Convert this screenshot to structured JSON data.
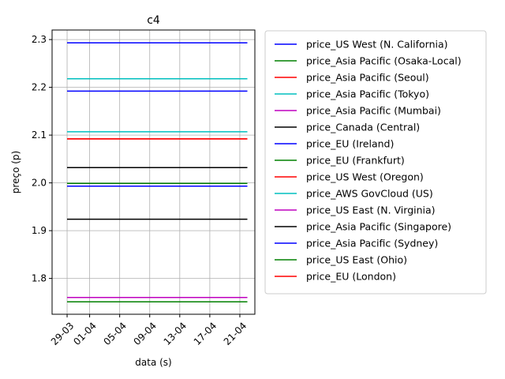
{
  "chart_data": {
    "type": "line",
    "title": "c4",
    "xlabel": "data (s)",
    "ylabel": "preço (p)",
    "xlim": [
      "2017-03-27",
      "2017-04-23"
    ],
    "ylim": [
      1.725,
      2.32
    ],
    "x_ticks": [
      "2017-03-29",
      "2017-04-01",
      "2017-04-05",
      "2017-04-09",
      "2017-04-13",
      "2017-04-17",
      "2017-04-21"
    ],
    "x_tick_labels": [
      "29-03",
      "01-04",
      "05-04",
      "09-04",
      "13-04",
      "17-04",
      "21-04"
    ],
    "y_ticks": [
      1.8,
      1.9,
      2.0,
      2.1,
      2.2,
      2.3
    ],
    "y_tick_labels": [
      "1.8",
      "1.9",
      "2.0",
      "2.1",
      "2.2",
      "2.3"
    ],
    "grid": true,
    "legend_position": "outside-right",
    "x": [
      "2017-03-29",
      "2017-04-22"
    ],
    "series": [
      {
        "name": "price_US West (N. California)",
        "color": "#0000ff",
        "values": [
          2.293,
          2.293
        ]
      },
      {
        "name": "price_Asia Pacific (Osaka-Local)",
        "color": "#008000",
        "values": [
          1.751,
          1.751
        ]
      },
      {
        "name": "price_Asia Pacific (Seoul)",
        "color": "#ff0000",
        "values": [
          2.092,
          2.092
        ]
      },
      {
        "name": "price_Asia Pacific (Tokyo)",
        "color": "#00bfbf",
        "values": [
          2.218,
          2.218
        ]
      },
      {
        "name": "price_Asia Pacific (Mumbai)",
        "color": "#bf00bf",
        "values": [
          1.76,
          1.76
        ]
      },
      {
        "name": "price_Canada (Central)",
        "color": "#000000",
        "values": [
          2.032,
          2.032
        ]
      },
      {
        "name": "price_EU (Ireland)",
        "color": "#0000ff",
        "values": [
          1.993,
          1.993
        ]
      },
      {
        "name": "price_EU (Frankfurt)",
        "color": "#008000",
        "values": [
          1.999,
          1.999
        ]
      },
      {
        "name": "price_US West (Oregon)",
        "color": "#ff0000",
        "values": [
          1.999,
          1.999
        ]
      },
      {
        "name": "price_AWS GovCloud (US)",
        "color": "#00bfbf",
        "values": [
          2.107,
          2.107
        ]
      },
      {
        "name": "price_US East (N. Virginia)",
        "color": "#bf00bf",
        "values": [
          1.999,
          1.999
        ]
      },
      {
        "name": "price_Asia Pacific (Singapore)",
        "color": "#000000",
        "values": [
          1.924,
          1.924
        ]
      },
      {
        "name": "price_Asia Pacific (Sydney)",
        "color": "#0000ff",
        "values": [
          2.192,
          2.192
        ]
      },
      {
        "name": "price_US East (Ohio)",
        "color": "#008000",
        "values": [
          1.999,
          1.999
        ]
      },
      {
        "name": "price_EU (London)",
        "color": "#ff0000",
        "values": [
          2.092,
          2.092
        ]
      }
    ]
  }
}
